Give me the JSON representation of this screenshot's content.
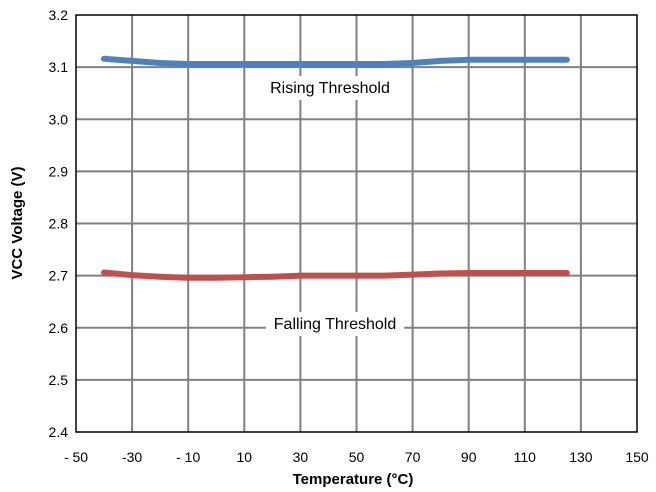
{
  "chart_data": {
    "type": "line",
    "xlabel": "Temperature (°C)",
    "ylabel": "VCC Voltage (V)",
    "xlim": [
      -50,
      150
    ],
    "ylim": [
      2.4,
      3.2
    ],
    "x_ticks": [
      "- 50",
      "-30",
      "- 10",
      "10",
      "30",
      "50",
      "70",
      "90",
      "110",
      "130",
      "150"
    ],
    "y_ticks": [
      "2.4",
      "2.5",
      "2.6",
      "2.7",
      "2.8",
      "2.9",
      "3.0",
      "3.1",
      "3.2"
    ],
    "grid": true,
    "series": [
      {
        "name": "Rising Threshold",
        "color": "#4f81bd",
        "x": [
          -40,
          -30,
          -20,
          -10,
          0,
          10,
          20,
          30,
          40,
          50,
          60,
          70,
          80,
          90,
          100,
          110,
          125
        ],
        "y": [
          3.116,
          3.112,
          3.108,
          3.106,
          3.106,
          3.106,
          3.106,
          3.106,
          3.106,
          3.106,
          3.106,
          3.108,
          3.112,
          3.114,
          3.114,
          3.114,
          3.114
        ]
      },
      {
        "name": "Falling Threshold",
        "color": "#c0504d",
        "x": [
          -40,
          -30,
          -20,
          -10,
          0,
          10,
          20,
          30,
          40,
          50,
          60,
          70,
          80,
          90,
          100,
          110,
          125
        ],
        "y": [
          2.706,
          2.701,
          2.698,
          2.696,
          2.696,
          2.697,
          2.698,
          2.7,
          2.7,
          2.7,
          2.7,
          2.702,
          2.704,
          2.705,
          2.705,
          2.705,
          2.705
        ]
      }
    ],
    "annotations": [
      {
        "text": "Rising Threshold",
        "series": 0
      },
      {
        "text": "Falling Threshold",
        "series": 1
      }
    ]
  }
}
